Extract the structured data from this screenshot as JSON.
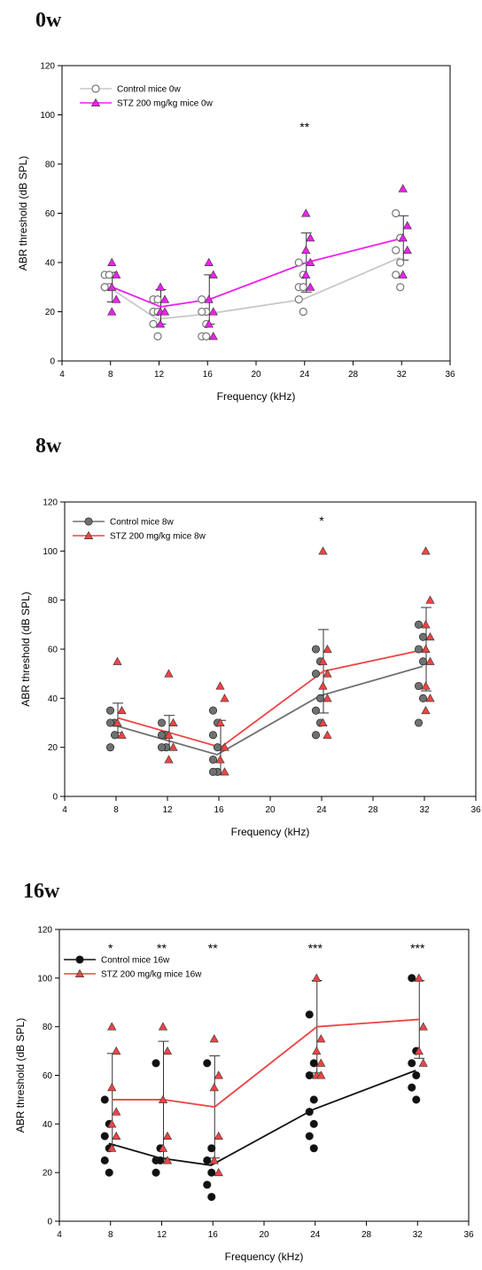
{
  "panels": [
    {
      "label": "0w",
      "chart_data": {
        "type": "scatter",
        "xlabel": "Frequency (kHz)",
        "ylabel": "ABR threshold (dB SPL)",
        "xlim": [
          4,
          36
        ],
        "ylim": [
          0,
          120
        ],
        "xticks": [
          4,
          8,
          12,
          16,
          20,
          24,
          28,
          32,
          36
        ],
        "yticks": [
          0,
          20,
          40,
          60,
          80,
          100,
          120
        ],
        "legend_position": "top-left",
        "significance": [
          {
            "x": 24,
            "text": "**"
          }
        ],
        "series": [
          {
            "name": "Control mice 0w",
            "color": "#c8c8c8",
            "marker": "circle-open",
            "x": [
              8,
              12,
              16,
              24,
              32
            ],
            "mean": [
              30,
              17,
              19,
              25,
              42
            ],
            "error_bar": [],
            "points": [
              [
                8,
                [
                  35,
                  35,
                  30,
                  30,
                  30
                ]
              ],
              [
                12,
                [
                  25,
                  25,
                  20,
                  20,
                  15,
                  10
                ]
              ],
              [
                16,
                [
                  25,
                  20,
                  20,
                  15,
                  10,
                  10
                ]
              ],
              [
                24,
                [
                  40,
                  35,
                  30,
                  30,
                  25,
                  20
                ]
              ],
              [
                32,
                [
                  60,
                  50,
                  45,
                  40,
                  35,
                  30
                ]
              ]
            ]
          },
          {
            "name": "STZ 200 mg/kg mice 0w",
            "color": "#ee22ee",
            "marker": "triangle",
            "x": [
              8,
              12,
              16,
              24,
              32
            ],
            "mean": [
              30,
              22,
              25,
              40,
              50
            ],
            "error_bar": [
              6,
              7,
              10,
              12,
              9
            ],
            "points": [
              [
                8,
                [
                  40,
                  35,
                  30,
                  25,
                  20
                ]
              ],
              [
                12,
                [
                  30,
                  25,
                  20,
                  20,
                  15
                ]
              ],
              [
                16,
                [
                  40,
                  35,
                  25,
                  20,
                  15,
                  10
                ]
              ],
              [
                24,
                [
                  60,
                  50,
                  45,
                  40,
                  35,
                  30
                ]
              ],
              [
                32,
                [
                  70,
                  55,
                  50,
                  45,
                  35
                ]
              ]
            ]
          }
        ]
      }
    },
    {
      "label": "8w",
      "chart_data": {
        "type": "scatter",
        "xlabel": "Frequency (kHz)",
        "ylabel": "ABR threshold (dB SPL)",
        "xlim": [
          4,
          36
        ],
        "ylim": [
          0,
          120
        ],
        "xticks": [
          4,
          8,
          12,
          16,
          20,
          24,
          28,
          32,
          36
        ],
        "yticks": [
          0,
          20,
          40,
          60,
          80,
          100,
          120
        ],
        "legend_position": "top-left",
        "significance": [
          {
            "x": 24,
            "text": "*"
          }
        ],
        "series": [
          {
            "name": "Control mice 8w",
            "color": "#707070",
            "marker": "circle-filled",
            "x": [
              8,
              12,
              16,
              24,
              32
            ],
            "mean": [
              29,
              23,
              17,
              41,
              53
            ],
            "error_bar": [],
            "points": [
              [
                8,
                [
                  35,
                  30,
                  30,
                  25,
                  20
                ]
              ],
              [
                12,
                [
                  30,
                  25,
                  25,
                  20,
                  20
                ]
              ],
              [
                16,
                [
                  35,
                  30,
                  25,
                  20,
                  15,
                  10,
                  10
                ]
              ],
              [
                24,
                [
                  60,
                  55,
                  50,
                  40,
                  35,
                  30,
                  25
                ]
              ],
              [
                32,
                [
                  70,
                  65,
                  60,
                  55,
                  45,
                  40,
                  30
                ]
              ]
            ]
          },
          {
            "name": "STZ 200 mg/kg mice 8w",
            "color": "#ee4444",
            "marker": "triangle",
            "x": [
              8,
              12,
              16,
              24,
              32
            ],
            "mean": [
              32,
              26,
              20,
              51,
              60
            ],
            "error_bar": [
              6,
              7,
              11,
              17,
              17
            ],
            "points": [
              [
                8,
                [
                  55,
                  35,
                  30,
                  25
                ]
              ],
              [
                12,
                [
                  50,
                  30,
                  25,
                  20,
                  15
                ]
              ],
              [
                16,
                [
                  45,
                  40,
                  30,
                  20,
                  15,
                  10
                ]
              ],
              [
                24,
                [
                  100,
                  60,
                  55,
                  50,
                  45,
                  40,
                  30,
                  25
                ]
              ],
              [
                32,
                [
                  100,
                  80,
                  70,
                  65,
                  60,
                  55,
                  45,
                  40,
                  35
                ]
              ]
            ]
          }
        ]
      }
    },
    {
      "label": "16w",
      "chart_data": {
        "type": "scatter",
        "xlabel": "Frequency (kHz)",
        "ylabel": "ABR threshold (dB SPL)",
        "xlim": [
          4,
          36
        ],
        "ylim": [
          0,
          120
        ],
        "xticks": [
          4,
          8,
          12,
          16,
          20,
          24,
          28,
          32,
          36
        ],
        "yticks": [
          0,
          20,
          40,
          60,
          80,
          100,
          120
        ],
        "legend_position": "top-left",
        "significance": [
          {
            "x": 8,
            "text": "*"
          },
          {
            "x": 12,
            "text": "**"
          },
          {
            "x": 16,
            "text": "**"
          },
          {
            "x": 24,
            "text": "***"
          },
          {
            "x": 32,
            "text": "***"
          }
        ],
        "series": [
          {
            "name": "Control mice 16w",
            "color": "#111111",
            "marker": "circle-filled",
            "x": [
              8,
              12,
              16,
              24,
              32
            ],
            "mean": [
              32,
              26,
              23,
              46,
              62
            ],
            "error_bar": [],
            "points": [
              [
                8,
                [
                  50,
                  40,
                  35,
                  30,
                  25,
                  20
                ]
              ],
              [
                12,
                [
                  65,
                  30,
                  25,
                  25,
                  20
                ]
              ],
              [
                16,
                [
                  65,
                  30,
                  25,
                  20,
                  15,
                  10
                ]
              ],
              [
                24,
                [
                  85,
                  65,
                  60,
                  50,
                  45,
                  40,
                  35,
                  30
                ]
              ],
              [
                32,
                [
                  100,
                  70,
                  65,
                  60,
                  55,
                  50
                ]
              ]
            ]
          },
          {
            "name": "STZ 200 mg/kg mice 16w",
            "color": "#ee4444",
            "marker": "triangle",
            "x": [
              8,
              12,
              16,
              24,
              32
            ],
            "mean": [
              50,
              50,
              47,
              80,
              83
            ],
            "error_bar": [
              19,
              24,
              21,
              19,
              16
            ],
            "points": [
              [
                8,
                [
                  80,
                  70,
                  55,
                  45,
                  40,
                  35,
                  30
                ]
              ],
              [
                12,
                [
                  80,
                  70,
                  50,
                  35,
                  30,
                  25
                ]
              ],
              [
                16,
                [
                  75,
                  60,
                  55,
                  35,
                  25,
                  20
                ]
              ],
              [
                24,
                [
                  100,
                  75,
                  70,
                  65,
                  60,
                  60
                ]
              ],
              [
                32,
                [
                  100,
                  80,
                  70,
                  65
                ]
              ]
            ]
          }
        ]
      }
    }
  ]
}
